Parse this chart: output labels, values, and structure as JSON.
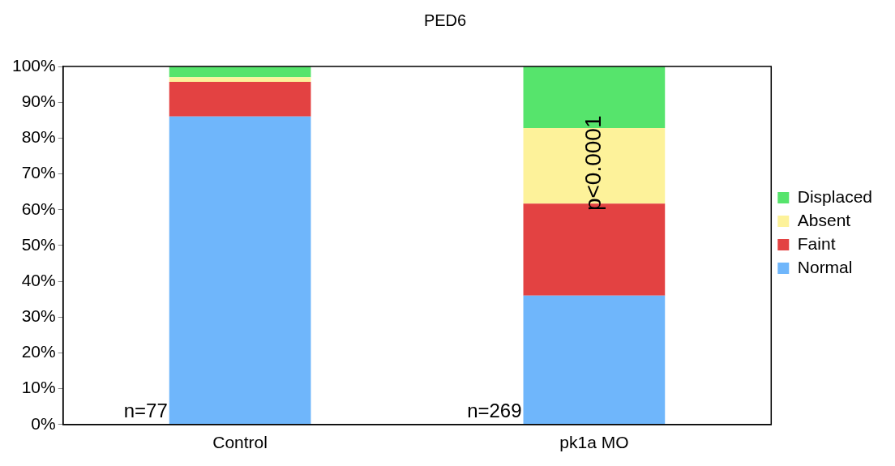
{
  "chart_data": {
    "type": "bar",
    "title": "PED6",
    "categories": [
      "Control",
      "pk1a MO"
    ],
    "stacked": true,
    "series": [
      {
        "name": "Normal",
        "color": "#6fb6fb",
        "values": [
          86,
          36
        ]
      },
      {
        "name": "Faint",
        "color": "#e34242",
        "values": [
          9.7,
          25.7
        ]
      },
      {
        "name": "Absent",
        "color": "#fdf29a",
        "values": [
          1.3,
          21.1
        ]
      },
      {
        "name": "Displaced",
        "color": "#56e46c",
        "values": [
          3,
          17.2
        ]
      }
    ],
    "ylim": [
      0,
      100
    ],
    "yticks": [
      {
        "value": 0,
        "label": "0%"
      },
      {
        "value": 10,
        "label": "10%"
      },
      {
        "value": 20,
        "label": "20%"
      },
      {
        "value": 30,
        "label": "30%"
      },
      {
        "value": 40,
        "label": "40%"
      },
      {
        "value": 50,
        "label": "50%"
      },
      {
        "value": 60,
        "label": "60%"
      },
      {
        "value": 70,
        "label": "70%"
      },
      {
        "value": 80,
        "label": "80%"
      },
      {
        "value": 90,
        "label": "90%"
      },
      {
        "value": 100,
        "label": "100%"
      }
    ],
    "grid": false,
    "legend": "right",
    "annotations": [
      "n=77",
      "n=269",
      "p<0.0001"
    ]
  }
}
